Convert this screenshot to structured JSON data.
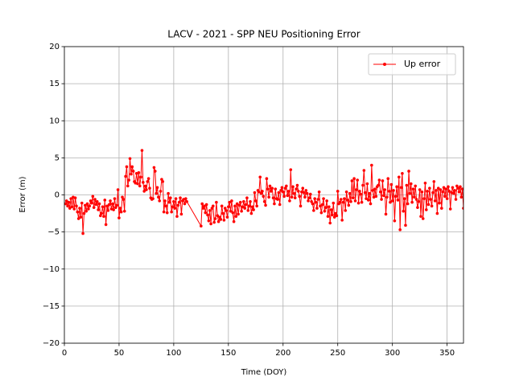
{
  "chart_data": {
    "type": "line",
    "title": "LACV - 2021 - SPP NEU Positioning Error",
    "x_label": "Time (DOY)",
    "y_label": "Error (m)",
    "xlim": [
      0,
      365
    ],
    "xticks": [
      0,
      50,
      100,
      150,
      200,
      250,
      300,
      350
    ],
    "ylim": [
      -20,
      20
    ],
    "yticks": [
      {
        "value": -20,
        "label": "−20"
      },
      {
        "value": -15,
        "label": "−15"
      },
      {
        "value": -10,
        "label": "−10"
      },
      {
        "value": -5,
        "label": "−5"
      },
      0,
      5,
      10,
      15,
      20
    ],
    "grid": true,
    "legend": "upper right",
    "x": [
      1,
      2,
      3,
      4,
      5,
      6,
      7,
      8,
      9,
      10,
      11,
      12,
      13,
      14,
      15,
      16,
      17,
      18,
      19,
      20,
      21,
      22,
      23,
      24,
      25,
      26,
      27,
      28,
      29,
      30,
      31,
      32,
      33,
      34,
      35,
      36,
      37,
      38,
      39,
      40,
      41,
      42,
      43,
      44,
      45,
      46,
      47,
      48,
      49,
      50,
      51,
      52,
      53,
      54,
      55,
      56,
      57,
      58,
      59,
      60,
      61,
      62,
      63,
      64,
      65,
      66,
      67,
      68,
      69,
      70,
      71,
      72,
      73,
      74,
      75,
      76,
      77,
      78,
      79,
      80,
      81,
      82,
      83,
      84,
      85,
      86,
      87,
      88,
      89,
      90,
      91,
      92,
      93,
      94,
      95,
      96,
      97,
      98,
      99,
      100,
      101,
      102,
      103,
      104,
      105,
      106,
      107,
      108,
      109,
      110,
      111,
      112,
      125,
      126,
      127,
      128,
      129,
      130,
      131,
      132,
      133,
      134,
      135,
      136,
      137,
      138,
      139,
      140,
      141,
      142,
      143,
      144,
      145,
      146,
      147,
      148,
      149,
      150,
      151,
      152,
      153,
      154,
      155,
      156,
      157,
      158,
      159,
      160,
      161,
      162,
      163,
      164,
      165,
      166,
      167,
      168,
      169,
      170,
      171,
      172,
      173,
      174,
      175,
      176,
      177,
      178,
      179,
      180,
      181,
      182,
      183,
      184,
      185,
      186,
      187,
      188,
      189,
      190,
      191,
      192,
      193,
      194,
      195,
      196,
      197,
      198,
      199,
      200,
      201,
      202,
      203,
      204,
      205,
      206,
      207,
      208,
      209,
      210,
      211,
      212,
      213,
      214,
      215,
      216,
      217,
      218,
      219,
      220,
      221,
      222,
      223,
      224,
      225,
      226,
      227,
      228,
      229,
      230,
      231,
      232,
      233,
      234,
      235,
      236,
      237,
      238,
      239,
      240,
      241,
      242,
      243,
      244,
      245,
      246,
      247,
      248,
      249,
      250,
      251,
      252,
      253,
      254,
      255,
      256,
      257,
      258,
      259,
      260,
      261,
      262,
      263,
      264,
      265,
      266,
      267,
      268,
      269,
      270,
      271,
      272,
      273,
      274,
      275,
      276,
      277,
      278,
      279,
      280,
      281,
      282,
      283,
      284,
      285,
      286,
      287,
      288,
      289,
      290,
      291,
      292,
      293,
      294,
      295,
      296,
      297,
      298,
      299,
      300,
      301,
      302,
      303,
      304,
      305,
      306,
      307,
      308,
      309,
      310,
      311,
      312,
      313,
      314,
      315,
      316,
      317,
      318,
      319,
      320,
      321,
      322,
      323,
      324,
      325,
      326,
      327,
      328,
      329,
      330,
      331,
      332,
      333,
      334,
      335,
      336,
      337,
      338,
      339,
      340,
      341,
      342,
      343,
      344,
      345,
      346,
      347,
      348,
      349,
      350,
      351,
      352,
      353,
      354,
      355,
      356,
      357,
      358,
      359,
      360,
      361,
      362,
      363,
      364,
      365
    ],
    "series": [
      {
        "name": "Up error",
        "color": "#ff0000",
        "values": [
          -1.2,
          -0.8,
          -1.5,
          -1.0,
          -1.8,
          -0.5,
          -1.6,
          -0.3,
          -1.9,
          -0.4,
          -1.5,
          -2.3,
          -3.2,
          -1.8,
          -3.0,
          -1.1,
          -5.2,
          -2.5,
          -1.4,
          -2.2,
          -1.2,
          -1.9,
          -1.5,
          -0.8,
          -1.1,
          -0.2,
          -1.7,
          -0.6,
          -1.3,
          -0.9,
          -2.0,
          -1.2,
          -2.8,
          -2.5,
          -1.6,
          -2.9,
          -0.7,
          -4.0,
          -1.5,
          -2.1,
          -1.3,
          -0.8,
          -1.9,
          -1.2,
          -2.0,
          -0.5,
          -1.7,
          -1.4,
          0.7,
          -3.1,
          -1.8,
          -2.3,
          -0.3,
          -0.6,
          -2.2,
          2.5,
          3.8,
          1.2,
          2.0,
          4.9,
          2.8,
          3.8,
          3.2,
          1.8,
          1.6,
          2.9,
          1.5,
          3.0,
          1.2,
          2.4,
          6.0,
          1.7,
          0.5,
          1.2,
          0.7,
          1.8,
          2.2,
          0.9,
          -0.4,
          -0.6,
          -0.5,
          3.7,
          3.2,
          0.2,
          1.0,
          -0.3,
          -0.8,
          0.5,
          2.1,
          1.8,
          -2.3,
          -0.8,
          -1.5,
          -2.4,
          0.2,
          -1.0,
          -0.4,
          -2.3,
          -1.6,
          -0.9,
          -1.8,
          -0.5,
          -2.9,
          -1.4,
          -1.0,
          -0.4,
          -2.6,
          -0.8,
          -0.6,
          -1.2,
          -0.5,
          -0.9,
          -4.2,
          -1.2,
          -1.8,
          -1.5,
          -2.4,
          -1.3,
          -2.7,
          -3.5,
          -2.1,
          -3.9,
          -1.8,
          -1.5,
          -3.7,
          -3.2,
          -1.0,
          -2.8,
          -3.6,
          -3.0,
          -3.3,
          -1.5,
          -2.5,
          -3.4,
          -1.8,
          -2.1,
          -3.0,
          -1.6,
          -1.0,
          -2.2,
          -0.8,
          -2.4,
          -3.6,
          -1.5,
          -2.9,
          -1.2,
          -2.6,
          -1.4,
          -1.0,
          -2.2,
          -1.6,
          -0.9,
          -1.8,
          -1.3,
          -0.4,
          -2.1,
          -1.5,
          -0.9,
          -2.5,
          -1.6,
          -2.0,
          0.3,
          -0.8,
          -1.5,
          0.6,
          0.4,
          2.4,
          0.2,
          0.5,
          -0.2,
          -0.9,
          -1.4,
          2.2,
          0.8,
          -0.3,
          1.2,
          0.5,
          0.9,
          -0.4,
          -1.2,
          0.8,
          -0.5,
          -0.6,
          0.3,
          -1.3,
          0.6,
          1.0,
          0.4,
          -0.2,
          0.9,
          1.2,
          -0.1,
          0.5,
          -0.8,
          3.4,
          -0.3,
          1.1,
          0.2,
          -0.4,
          0.8,
          1.3,
          0.5,
          -0.2,
          -1.5,
          0.4,
          0.9,
          0.3,
          -0.3,
          0.6,
          0.2,
          -0.8,
          -0.4,
          0.1,
          -0.9,
          -1.2,
          -2.1,
          -0.5,
          -1.0,
          -1.8,
          -0.6,
          0.4,
          -1.5,
          -2.4,
          -1.3,
          -0.5,
          -2.2,
          -1.7,
          -0.8,
          -2.9,
          -1.6,
          -3.8,
          -2.0,
          -2.7,
          -1.1,
          -3.0,
          -2.5,
          -2.8,
          0.5,
          -1.2,
          -1.0,
          -0.6,
          -3.4,
          -1.0,
          -0.5,
          -2.1,
          0.4,
          -0.7,
          -1.4,
          0.2,
          -0.9,
          1.9,
          -0.4,
          2.2,
          -0.8,
          0.7,
          2.0,
          -1.1,
          0.5,
          0.1,
          -1.0,
          1.3,
          3.3,
          0.3,
          -0.5,
          1.5,
          -0.7,
          0.2,
          -1.2,
          4.0,
          0.6,
          -0.3,
          0.8,
          -0.2,
          1.1,
          1.3,
          2.0,
          0.4,
          -0.6,
          1.9,
          -0.1,
          0.7,
          -2.6,
          -0.3,
          2.2,
          0.5,
          -1.0,
          1.4,
          -0.8,
          0.6,
          -3.5,
          -0.2,
          1.1,
          -0.7,
          2.4,
          -4.7,
          1.0,
          2.9,
          -2.2,
          -0.5,
          -4.1,
          1.3,
          -1.2,
          3.2,
          0.2,
          1.5,
          -1.0,
          0.8,
          -0.3,
          1.2,
          -0.6,
          -1.7,
          -0.9,
          0.7,
          -2.9,
          0.4,
          -3.2,
          -0.5,
          1.6,
          -2.0,
          0.5,
          -1.3,
          0.9,
          -0.6,
          -1.5,
          0.3,
          1.8,
          -0.8,
          0.6,
          -2.5,
          0.9,
          -1.1,
          0.7,
          -1.8,
          0.4,
          1.0,
          -0.2,
          0.8,
          -0.5,
          1.1,
          0.5,
          -1.9,
          0.3,
          1.0,
          0.2,
          0.6,
          -0.6,
          1.2,
          0.9,
          0.4,
          1.1,
          -0.3,
          0.8,
          -1.8
        ]
      }
    ]
  }
}
